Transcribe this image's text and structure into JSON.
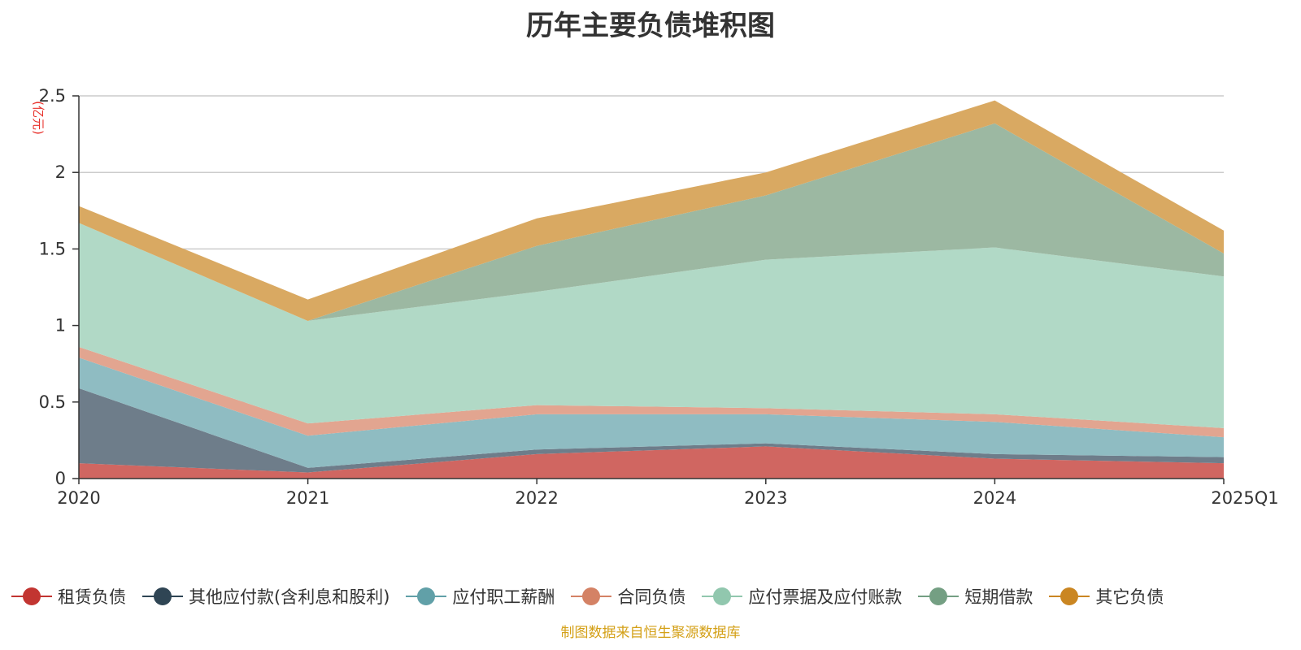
{
  "chart_data": {
    "type": "area",
    "stacked": true,
    "title": "历年主要负债堆积图",
    "unit_label": "(亿元)",
    "categories": [
      "2020",
      "2021",
      "2022",
      "2023",
      "2024",
      "2025Q1"
    ],
    "y_ticks": [
      "0",
      "0.5",
      "1",
      "1.5",
      "2",
      "2.5"
    ],
    "ylim": [
      0,
      2.5
    ],
    "grid": true,
    "legend_position": "bottom",
    "series": [
      {
        "name": "租赁负债",
        "color": "#d06661",
        "values": [
          0.1,
          0.04,
          0.16,
          0.21,
          0.13,
          0.1
        ]
      },
      {
        "name": "其他应付款(含利息和股利)",
        "color": "#6e7d8a",
        "values": [
          0.49,
          0.03,
          0.03,
          0.02,
          0.03,
          0.04
        ]
      },
      {
        "name": "应付职工薪酬",
        "color": "#8fbcc2",
        "values": [
          0.2,
          0.21,
          0.23,
          0.19,
          0.21,
          0.13
        ]
      },
      {
        "name": "合同负债",
        "color": "#e2a590",
        "values": [
          0.07,
          0.08,
          0.06,
          0.04,
          0.05,
          0.06
        ]
      },
      {
        "name": "应付票据及应付账款",
        "color": "#b1d9c6",
        "values": [
          0.81,
          0.67,
          0.74,
          0.97,
          1.09,
          0.99
        ]
      },
      {
        "name": "短期借款",
        "color": "#9cb8a2",
        "values": [
          0.0,
          0.0,
          0.3,
          0.42,
          0.81,
          0.15
        ]
      },
      {
        "name": "其它负债",
        "color": "#d9a962",
        "values": [
          0.11,
          0.14,
          0.18,
          0.15,
          0.15,
          0.15
        ]
      }
    ],
    "legend_colors": [
      "#c23531",
      "#2f4554",
      "#61a0a8",
      "#d48265",
      "#91c7ae",
      "#749f83",
      "#ca8622"
    ],
    "source_note": "制图数据来自恒生聚源数据库"
  }
}
